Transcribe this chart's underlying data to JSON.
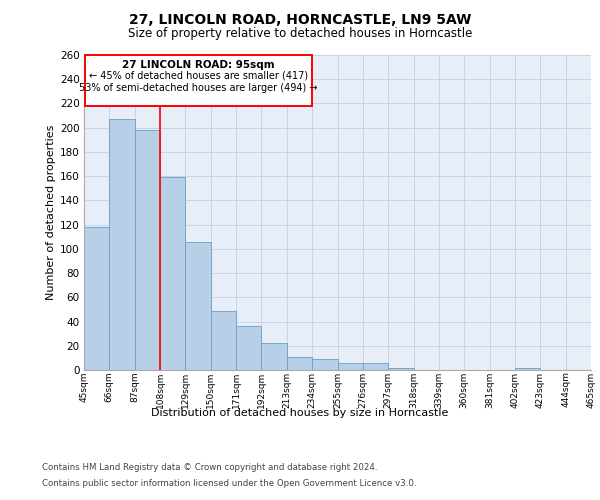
{
  "title1": "27, LINCOLN ROAD, HORNCASTLE, LN9 5AW",
  "title2": "Size of property relative to detached houses in Horncastle",
  "xlabel": "Distribution of detached houses by size in Horncastle",
  "ylabel": "Number of detached properties",
  "footnote1": "Contains HM Land Registry data © Crown copyright and database right 2024.",
  "footnote2": "Contains public sector information licensed under the Open Government Licence v3.0.",
  "annotation_title": "27 LINCOLN ROAD: 95sqm",
  "annotation_line1": "← 45% of detached houses are smaller (417)",
  "annotation_line2": "53% of semi-detached houses are larger (494) →",
  "bar_values": [
    118,
    207,
    198,
    159,
    106,
    49,
    36,
    22,
    11,
    9,
    6,
    6,
    2,
    0,
    0,
    0,
    0,
    2,
    0,
    0
  ],
  "bin_labels": [
    "45sqm",
    "66sqm",
    "87sqm",
    "108sqm",
    "129sqm",
    "150sqm",
    "171sqm",
    "192sqm",
    "213sqm",
    "234sqm",
    "255sqm",
    "276sqm",
    "297sqm",
    "318sqm",
    "339sqm",
    "360sqm",
    "381sqm",
    "402sqm",
    "423sqm",
    "444sqm",
    "465sqm"
  ],
  "bar_color": "#b8cfe8",
  "bar_edge_color": "#6a9fc0",
  "ylim": [
    0,
    260
  ],
  "yticks": [
    0,
    20,
    40,
    60,
    80,
    100,
    120,
    140,
    160,
    180,
    200,
    220,
    240,
    260
  ],
  "grid_color": "#c8d4e8",
  "plot_bg_color": "#e8eef8"
}
